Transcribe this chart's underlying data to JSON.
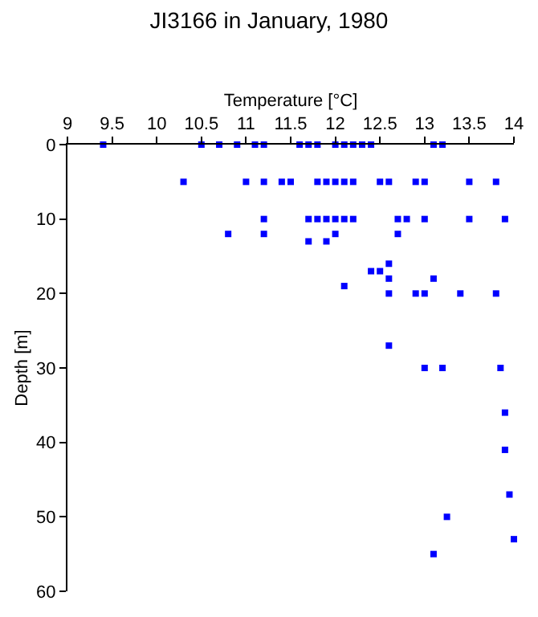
{
  "chart_data": {
    "type": "scatter",
    "title": "JI3166 in January, 1980",
    "xlabel": "Temperature [°C]",
    "ylabel": "Depth [m]",
    "xlim": [
      9,
      14
    ],
    "xticks": [
      9,
      9.5,
      10,
      10.5,
      11,
      11.5,
      12,
      12.5,
      13,
      13.5,
      14
    ],
    "ylim": [
      60,
      0
    ],
    "yticks": [
      0,
      10,
      20,
      30,
      40,
      50,
      60
    ],
    "marker": "square",
    "series": [
      {
        "color": "#0000ff",
        "x": [
          9.4,
          10.5,
          10.7,
          10.9,
          11.1,
          11.2,
          11.6,
          11.7,
          11.8,
          12.0,
          12.1,
          12.2,
          12.3,
          12.4,
          13.1,
          13.2,
          10.3,
          11.0,
          11.2,
          11.4,
          11.5,
          11.8,
          11.9,
          12.0,
          12.1,
          12.2,
          12.5,
          12.6,
          12.9,
          13.0,
          13.5,
          13.8,
          11.2,
          11.7,
          11.8,
          11.9,
          12.0,
          12.1,
          12.2,
          12.7,
          12.8,
          13.0,
          13.5,
          13.9,
          10.8,
          11.2,
          12.0,
          12.7,
          11.7,
          11.9,
          12.6,
          12.4,
          12.5,
          12.6,
          13.1,
          12.1,
          12.6,
          12.9,
          13.0,
          13.4,
          13.8,
          12.6,
          13.0,
          13.2,
          13.85,
          13.9,
          13.9,
          13.95,
          13.25,
          14.0,
          13.1
        ],
        "values": [
          0,
          0,
          0,
          0,
          0,
          0,
          0,
          0,
          0,
          0,
          0,
          0,
          0,
          0,
          0,
          0,
          5,
          5,
          5,
          5,
          5,
          5,
          5,
          5,
          5,
          5,
          5,
          5,
          5,
          5,
          5,
          5,
          10,
          10,
          10,
          10,
          10,
          10,
          10,
          10,
          10,
          10,
          10,
          10,
          12,
          12,
          12,
          12,
          13,
          13,
          16,
          17,
          17,
          18,
          18,
          19,
          20,
          20,
          20,
          20,
          20,
          27,
          30,
          30,
          30,
          36,
          41,
          47,
          50,
          53,
          55
        ]
      }
    ]
  }
}
